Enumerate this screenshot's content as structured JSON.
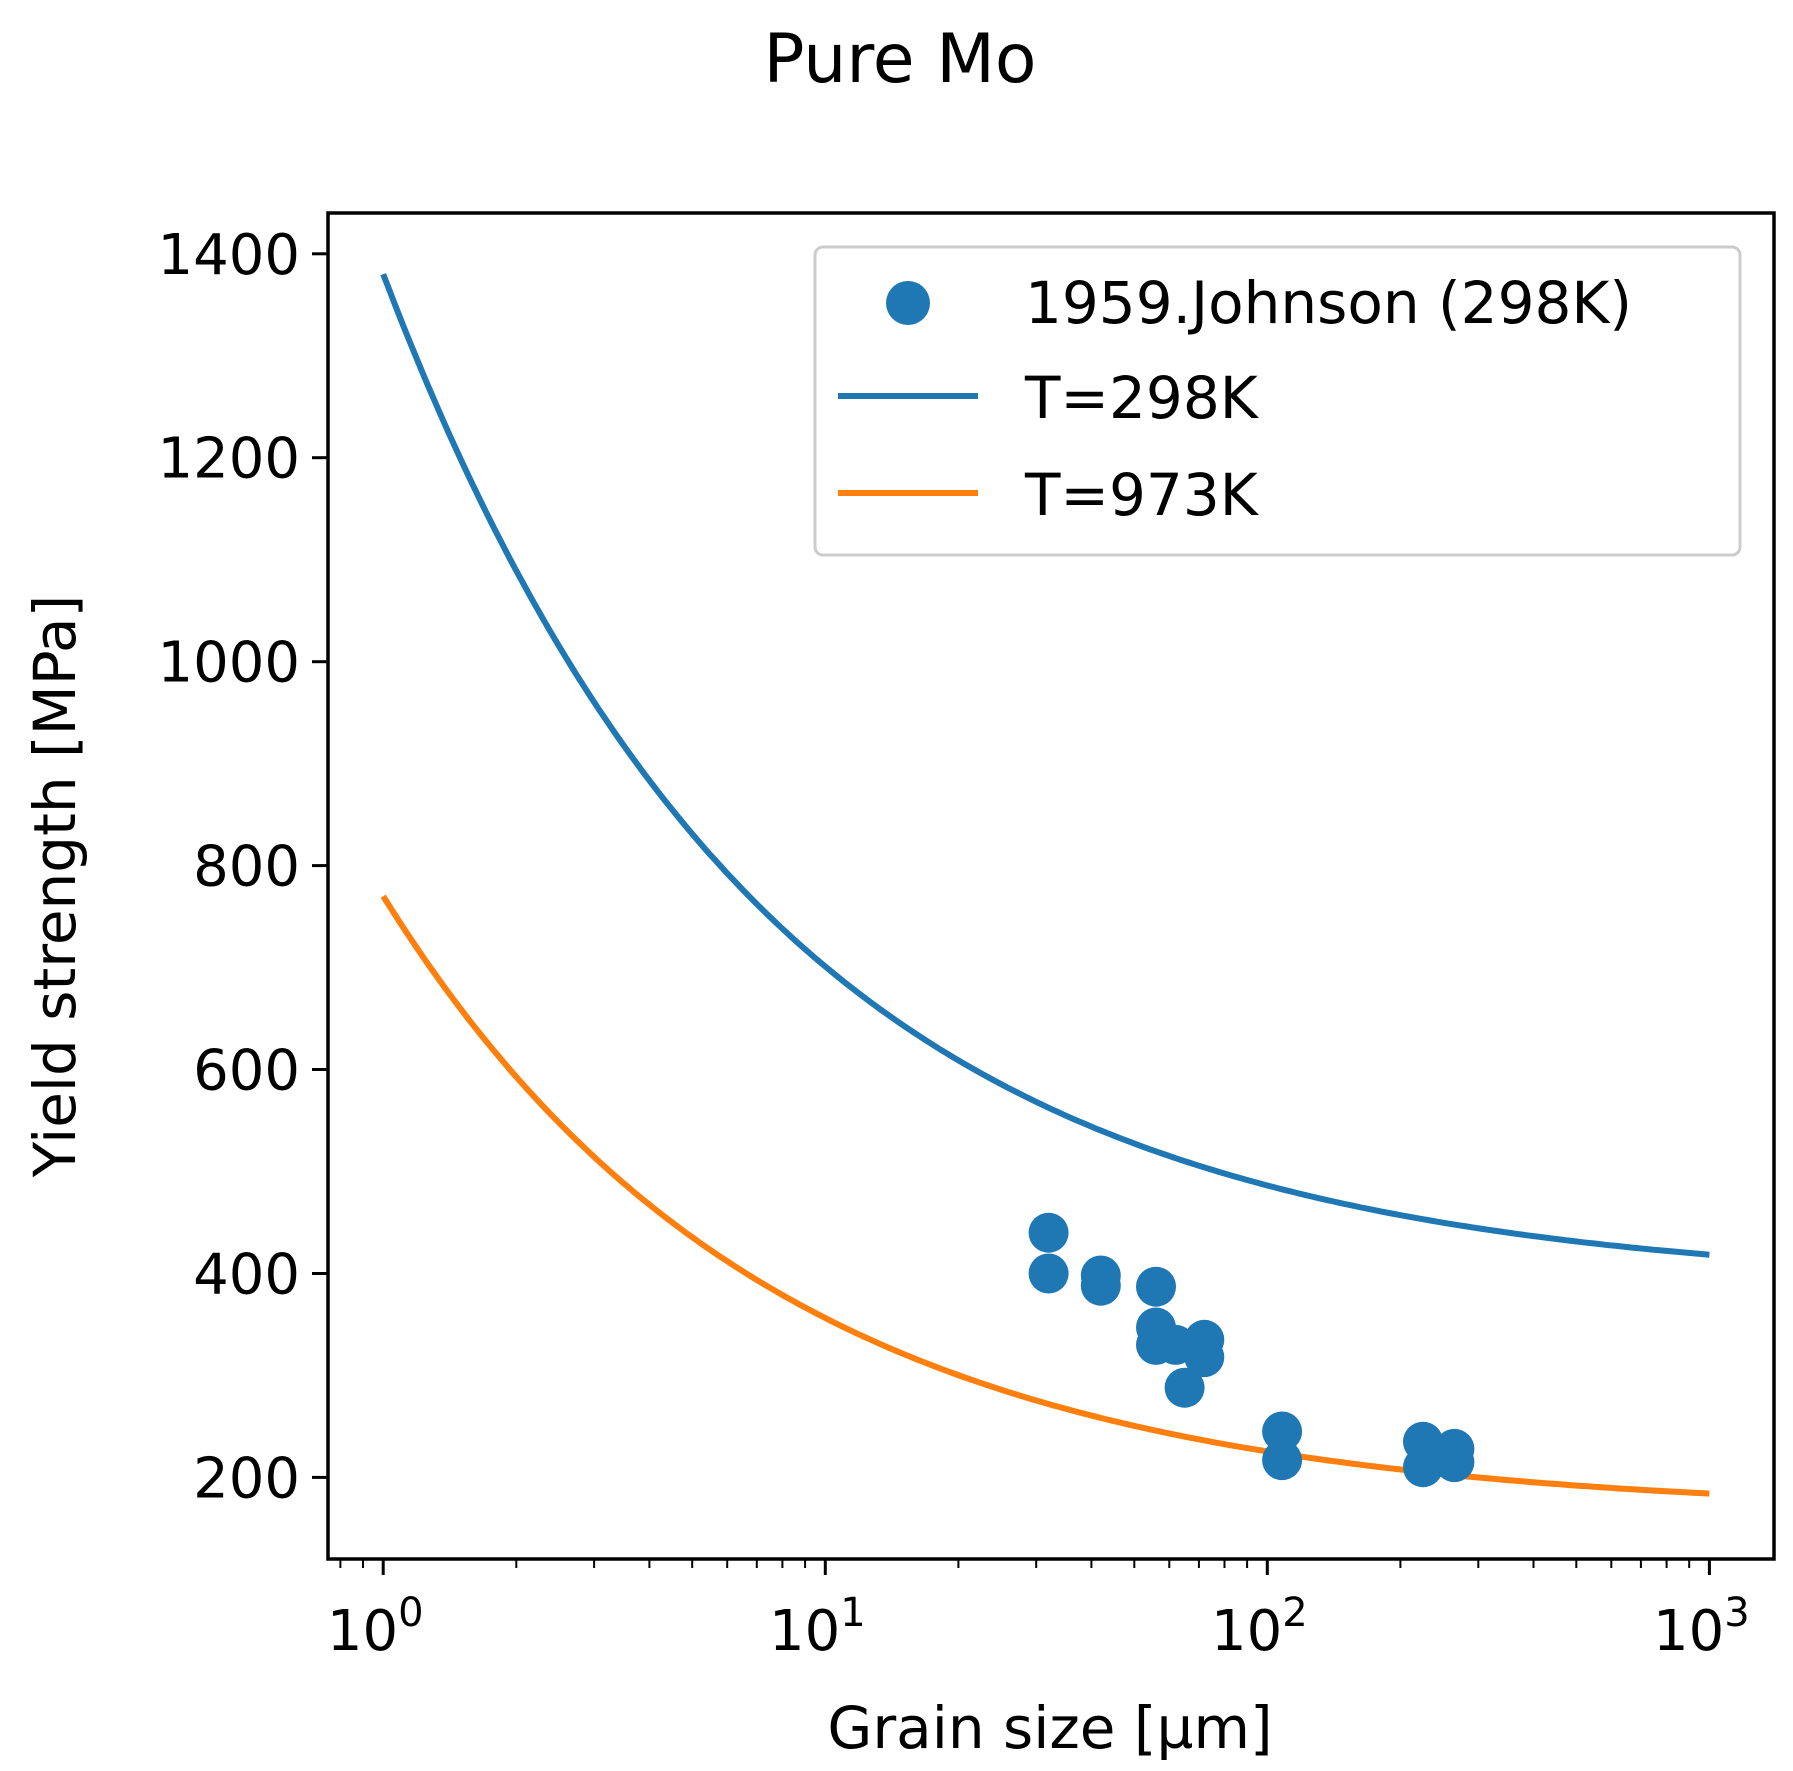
{
  "chart_data": {
    "type": "line",
    "title": "Pure Mo",
    "xlabel": "Grain size [µm]",
    "ylabel": "Yield strength [MPa]",
    "xscale": "log",
    "xlim": [
      0.75,
      1400
    ],
    "ylim": [
      120,
      1440
    ],
    "xticks": [
      {
        "value": 1,
        "base": "10",
        "exp": "0"
      },
      {
        "value": 10,
        "base": "10",
        "exp": "1"
      },
      {
        "value": 100,
        "base": "10",
        "exp": "2"
      },
      {
        "value": 1000,
        "base": "10",
        "exp": "3"
      }
    ],
    "yticks": [
      200,
      400,
      600,
      800,
      1000,
      1200,
      1400
    ],
    "series": [
      {
        "name": "1959.Johnson (298K)",
        "kind": "scatter",
        "color": "#1f77b4",
        "points": [
          {
            "x": 32,
            "y": 440
          },
          {
            "x": 32,
            "y": 400
          },
          {
            "x": 42,
            "y": 398
          },
          {
            "x": 42,
            "y": 388
          },
          {
            "x": 56,
            "y": 387
          },
          {
            "x": 56,
            "y": 347
          },
          {
            "x": 56,
            "y": 330
          },
          {
            "x": 62,
            "y": 330
          },
          {
            "x": 65,
            "y": 288
          },
          {
            "x": 72,
            "y": 335
          },
          {
            "x": 72,
            "y": 318
          },
          {
            "x": 108,
            "y": 245
          },
          {
            "x": 108,
            "y": 217
          },
          {
            "x": 225,
            "y": 235
          },
          {
            "x": 225,
            "y": 210
          },
          {
            "x": 265,
            "y": 228
          },
          {
            "x": 265,
            "y": 215
          }
        ]
      },
      {
        "name": "T=298K",
        "kind": "line",
        "color": "#1f77b4",
        "model": "hall-petch",
        "sigma0": 387,
        "k": 993,
        "x_range": [
          1,
          1000
        ]
      },
      {
        "name": "T=973K",
        "kind": "line",
        "color": "#ff7f0e",
        "model": "hall-petch",
        "sigma0": 165,
        "k": 605,
        "x_range": [
          1,
          1000
        ]
      }
    ],
    "legend_position": "top-right",
    "grid": false
  }
}
